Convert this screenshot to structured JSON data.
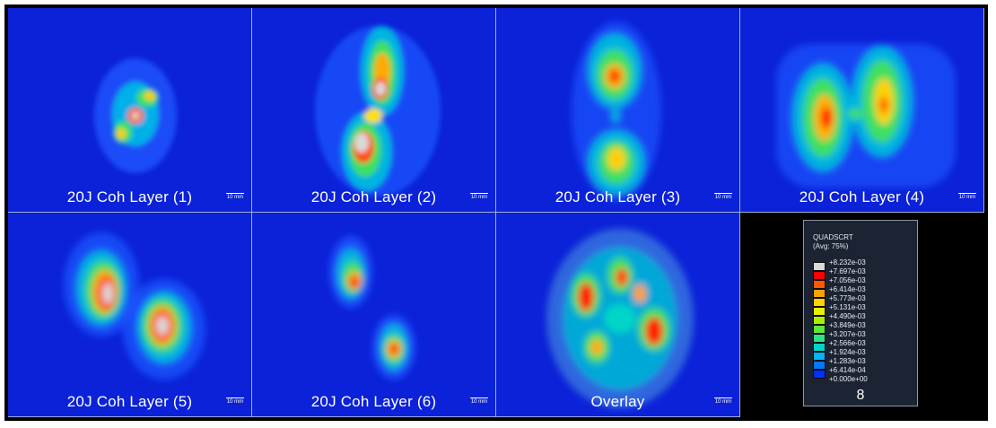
{
  "panels": [
    {
      "caption": "20J Coh Layer (1)",
      "scale": "10 mm"
    },
    {
      "caption": "20J Coh Layer (2)",
      "scale": "10 mm"
    },
    {
      "caption": "20J Coh Layer (3)",
      "scale": "10 mm"
    },
    {
      "caption": "20J Coh Layer (4)",
      "scale": "10 mm"
    },
    {
      "caption": "20J Coh Layer (5)",
      "scale": "10 mm"
    },
    {
      "caption": "20J Coh Layer (6)",
      "scale": "10 mm"
    },
    {
      "caption": "Overlay",
      "scale": "10 mm"
    }
  ],
  "legend": {
    "title": "QUADSCRT",
    "subtitle": "(Avg: 75%)",
    "ticks": [
      "+8.232e-03",
      "+7.697e-03",
      "+7.056e-03",
      "+6.414e-03",
      "+5.773e-03",
      "+5.131e-03",
      "+4.490e-03",
      "+3.849e-03",
      "+3.207e-03",
      "+2.566e-03",
      "+1.924e-03",
      "+1.283e-03",
      "+6.414e-04",
      "+0.000e+00"
    ],
    "colors": [
      "#d9d9d9",
      "#ff0000",
      "#ff5a00",
      "#ffa200",
      "#ffd200",
      "#e6f000",
      "#a8f000",
      "#5ce83a",
      "#2ee08a",
      "#00d6c8",
      "#00b4ff",
      "#0078ff",
      "#0030ff"
    ],
    "footer": "8"
  }
}
